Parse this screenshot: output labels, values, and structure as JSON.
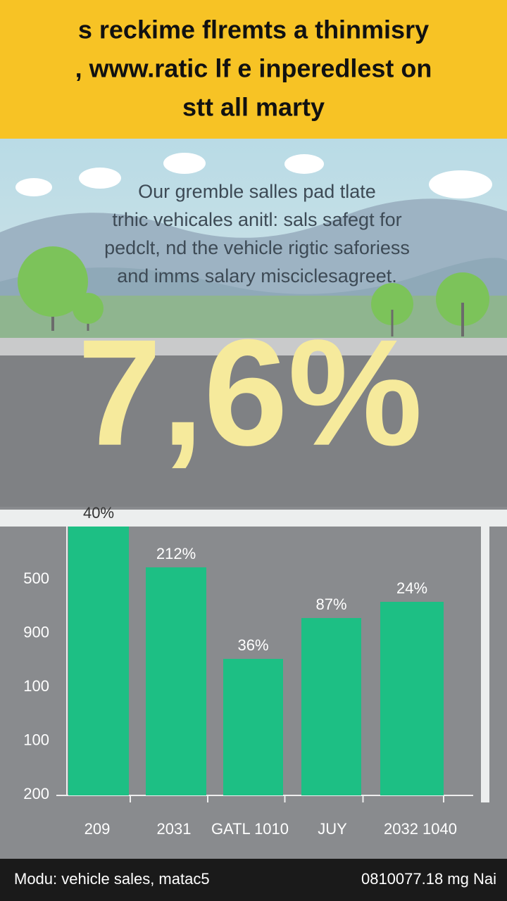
{
  "header": {
    "title_lines": [
      "s reckime flremts a thinmisry",
      ", www.ratic lf e inperedlest on",
      "stt all marty"
    ]
  },
  "intro": {
    "lines": [
      "Our gremble salles pad tlate",
      "trhic vehicales anitl: sals safegt for",
      "pedclt, nd the vehicle rigtic saforiess",
      "and imms salary misciclesagreet."
    ]
  },
  "headline": "7,6%",
  "chart": {
    "y_axis_labels": [
      "500",
      "900",
      "100",
      "100",
      "200"
    ],
    "bars": [
      {
        "label": "40%",
        "category": "209"
      },
      {
        "label": "212%",
        "category": "2031"
      },
      {
        "label": "36%",
        "category": "GATL 1010"
      },
      {
        "label": "87%",
        "category": "JUY"
      },
      {
        "label": "24%",
        "category": "2032 1040"
      }
    ]
  },
  "footer": {
    "left": "Modu: vehicle sales, matac5",
    "right": "0810077.18 mg Nai"
  }
}
